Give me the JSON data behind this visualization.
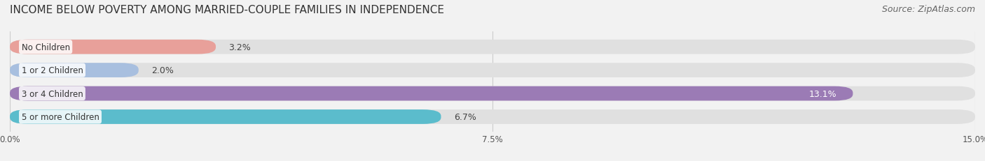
{
  "title": "INCOME BELOW POVERTY AMONG MARRIED-COUPLE FAMILIES IN INDEPENDENCE",
  "source": "Source: ZipAtlas.com",
  "categories": [
    "No Children",
    "1 or 2 Children",
    "3 or 4 Children",
    "5 or more Children"
  ],
  "values": [
    3.2,
    2.0,
    13.1,
    6.7
  ],
  "bar_colors": [
    "#e8a09a",
    "#a8bfdf",
    "#9b7bb5",
    "#5bbccc"
  ],
  "xlim": [
    0,
    15.0
  ],
  "xtick_labels": [
    "0.0%",
    "7.5%",
    "15.0%"
  ],
  "background_color": "#f2f2f2",
  "bar_background_color": "#e0e0e0",
  "title_fontsize": 11,
  "source_fontsize": 9,
  "value_fontsize": 9,
  "category_fontsize": 8.5,
  "bar_height": 0.62
}
